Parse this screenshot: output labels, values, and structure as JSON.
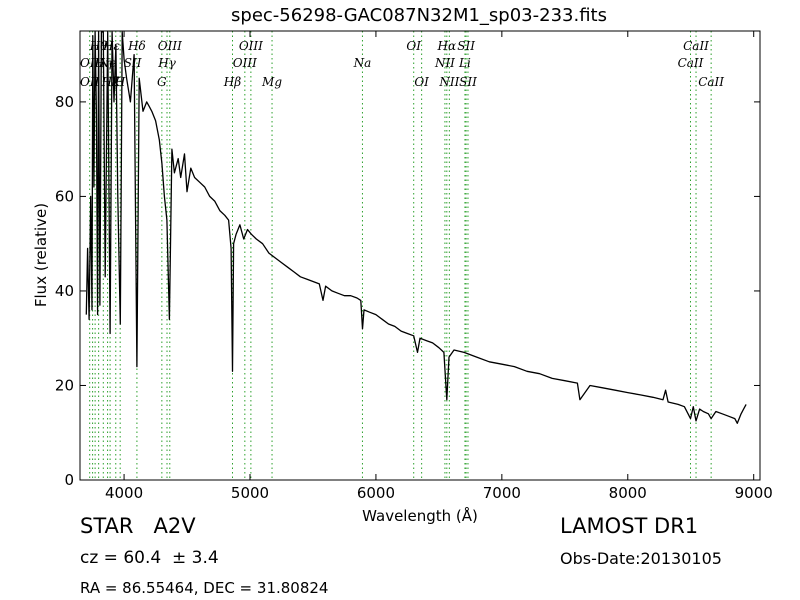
{
  "chart_data": {
    "type": "line",
    "title": "spec-56298-GAC087N32M1_sp03-233.fits",
    "xlabel": "Wavelength (Å)",
    "ylabel": "Flux (relative)",
    "xlim": [
      3650,
      9050
    ],
    "ylim": [
      0,
      95
    ],
    "xticks": [
      4000,
      5000,
      6000,
      7000,
      8000,
      9000
    ],
    "yticks": [
      0,
      20,
      40,
      60,
      80
    ],
    "grid": false,
    "line_color": "#000000",
    "marker_color": "#2ca02c",
    "series": [
      {
        "x": [
          3700,
          3710,
          3722,
          3735,
          3745,
          3752,
          3760,
          3770,
          3780,
          3790,
          3798,
          3808,
          3820,
          3835,
          3850,
          3870,
          3889,
          3905,
          3920,
          3935,
          3950,
          3970,
          3985,
          4000,
          4020,
          4050,
          4080,
          4102,
          4120,
          4150,
          4180,
          4200,
          4220,
          4250,
          4280,
          4300,
          4320,
          4340,
          4360,
          4380,
          4400,
          4430,
          4450,
          4480,
          4500,
          4530,
          4560,
          4600,
          4640,
          4680,
          4720,
          4760,
          4800,
          4830,
          4850,
          4861,
          4870,
          4890,
          4920,
          4950,
          4980,
          5010,
          5050,
          5100,
          5150,
          5200,
          5250,
          5300,
          5350,
          5400,
          5450,
          5500,
          5550,
          5580,
          5600,
          5650,
          5700,
          5750,
          5800,
          5850,
          5880,
          5893,
          5905,
          5950,
          6000,
          6050,
          6100,
          6150,
          6200,
          6250,
          6300,
          6330,
          6350,
          6400,
          6450,
          6500,
          6540,
          6563,
          6580,
          6620,
          6700,
          6800,
          6900,
          7000,
          7100,
          7200,
          7300,
          7400,
          7500,
          7600,
          7620,
          7700,
          7800,
          7900,
          8000,
          8100,
          8200,
          8280,
          8300,
          8320,
          8400,
          8450,
          8498,
          8520,
          8542,
          8570,
          8600,
          8640,
          8662,
          8700,
          8750,
          8800,
          8850,
          8870,
          8900,
          8920,
          8940
        ],
        "y": [
          35,
          49,
          34,
          60,
          36,
          94,
          62,
          96,
          78,
          35,
          95,
          37,
          99,
          99,
          43,
          98,
          31,
          95,
          80,
          92,
          60,
          33,
          97,
          89,
          85,
          80,
          90,
          24,
          85,
          78,
          80,
          79,
          78,
          76,
          72,
          67,
          60,
          55,
          34,
          70,
          65,
          68,
          64,
          69,
          61,
          66,
          64,
          63,
          62,
          60,
          59,
          57,
          56,
          55,
          49,
          23,
          50,
          52,
          54,
          51,
          53,
          52,
          51,
          50,
          48,
          47,
          46,
          45,
          44,
          43,
          42.5,
          42,
          41.5,
          38,
          41,
          40,
          39.5,
          39,
          39,
          38.5,
          38,
          32,
          36,
          35.5,
          35,
          34,
          33,
          32.5,
          31.5,
          31,
          30.5,
          27,
          30,
          29.5,
          29,
          28,
          27,
          17,
          26,
          27.5,
          27,
          26,
          25,
          24.5,
          24,
          23,
          22.5,
          21.5,
          21,
          20.5,
          17,
          20,
          19.5,
          19,
          18.5,
          18,
          17.5,
          17,
          19,
          16.5,
          16,
          15.5,
          13,
          15.5,
          12.5,
          15,
          14.5,
          14,
          13,
          14.5,
          14,
          13.5,
          13,
          12,
          14,
          15,
          16
        ]
      }
    ],
    "lines_dotted_x": [
      3727,
      3750,
      3770,
      3798,
      3835,
      3869,
      3889,
      3934,
      3969,
      4102,
      4300,
      4341,
      4363,
      4861,
      4959,
      5007,
      5175,
      5893,
      6300,
      6363,
      6548,
      6563,
      6583,
      6707,
      6716,
      6731,
      8498,
      8542,
      8662
    ],
    "line_labels": [
      {
        "text": "Hθ",
        "x": 3798,
        "row": 1
      },
      {
        "text": "Hε",
        "x": 3900,
        "row": 1
      },
      {
        "text": "Hδ",
        "x": 4102,
        "row": 1
      },
      {
        "text": "OIII",
        "x": 4363,
        "row": 1
      },
      {
        "text": "OII",
        "x": 3727,
        "row": 2
      },
      {
        "text": "Hη",
        "x": 3835,
        "row": 2
      },
      {
        "text": "Ne",
        "x": 3869,
        "row": 2
      },
      {
        "text": "Hγ",
        "x": 4341,
        "row": 2
      },
      {
        "text": "OII",
        "x": 3727,
        "row": 3
      },
      {
        "text": "Hζ",
        "x": 3889,
        "row": 3
      },
      {
        "text": "K",
        "x": 3934,
        "row": 3
      },
      {
        "text": "H",
        "x": 3969,
        "row": 3
      },
      {
        "text": "SII",
        "x": 4068,
        "row": 2
      },
      {
        "text": "G",
        "x": 4300,
        "row": 3
      },
      {
        "text": "OIII",
        "x": 5007,
        "row": 1
      },
      {
        "text": "Hβ",
        "x": 4861,
        "row": 3
      },
      {
        "text": "OIII",
        "x": 4959,
        "row": 2
      },
      {
        "text": "Mg",
        "x": 5175,
        "row": 3
      },
      {
        "text": "Na",
        "x": 5893,
        "row": 2
      },
      {
        "text": "OI",
        "x": 6300,
        "row": 1
      },
      {
        "text": "OI",
        "x": 6363,
        "row": 3
      },
      {
        "text": "Hα",
        "x": 6563,
        "row": 1
      },
      {
        "text": "SII",
        "x": 6716,
        "row": 1
      },
      {
        "text": "NII",
        "x": 6548,
        "row": 2
      },
      {
        "text": "Li",
        "x": 6707,
        "row": 2
      },
      {
        "text": "NII",
        "x": 6583,
        "row": 3
      },
      {
        "text": "SII",
        "x": 6731,
        "row": 3
      },
      {
        "text": "CaII",
        "x": 8542,
        "row": 1
      },
      {
        "text": "CaII",
        "x": 8498,
        "row": 2
      },
      {
        "text": "CaII",
        "x": 8662,
        "row": 3
      }
    ]
  },
  "info": {
    "class": "STAR   A2V",
    "survey": "LAMOST DR1",
    "cz": "cz = 60.4  ± 3.4",
    "obs_date": "Obs-Date:20130105",
    "radec": "RA = 86.55464, DEC = 31.80824"
  }
}
